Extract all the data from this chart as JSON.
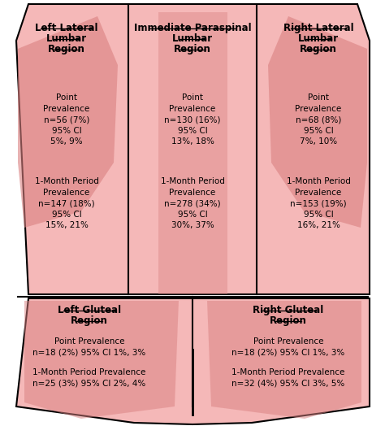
{
  "bg_color": "#f5b8b8",
  "bg_light": "#f9d0d0",
  "border_color": "#000000",
  "text_color": "#000000",
  "regions": {
    "top_left": {
      "title_lines": [
        "Left Lateral",
        "Lumbar",
        "Region"
      ],
      "point": "Point\nPrevalence\nn=56 (7%)\n95% CI\n5%, 9%",
      "month": "1-Month Period\nPrevalence\nn=147 (18%)\n95% CI\n15%, 21%"
    },
    "top_center": {
      "title_lines": [
        "Immediate Paraspinal",
        "Lumbar",
        "Region"
      ],
      "point": "Point\nPrevalence\nn=130 (16%)\n95% CI\n13%, 18%",
      "month": "1-Month Period\nPrevalence\nn=278 (34%)\n95% CI\n30%, 37%"
    },
    "top_right": {
      "title_lines": [
        "Right Lateral",
        "Lumbar",
        "Region"
      ],
      "point": "Point\nPrevalence\nn=68 (8%)\n95% CI\n7%, 10%",
      "month": "1-Month Period\nPrevalence\nn=153 (19%)\n95% CI\n16%, 21%"
    },
    "bottom_left": {
      "title_lines": [
        "Left Gluteal",
        "Region"
      ],
      "point": "Point Prevalence\nn=18 (2%) 95% CI 1%, 3%",
      "month": "1-Month Period Prevalence\nn=25 (3%) 95% CI 2%, 4%"
    },
    "bottom_right": {
      "title_lines": [
        "Right Gluteal",
        "Region"
      ],
      "point": "Point Prevalence\nn=18 (2%) 95% CI 1%, 3%",
      "month": "1-Month Period Prevalence\nn=32 (4%) 95% CI 3%, 5%"
    }
  }
}
